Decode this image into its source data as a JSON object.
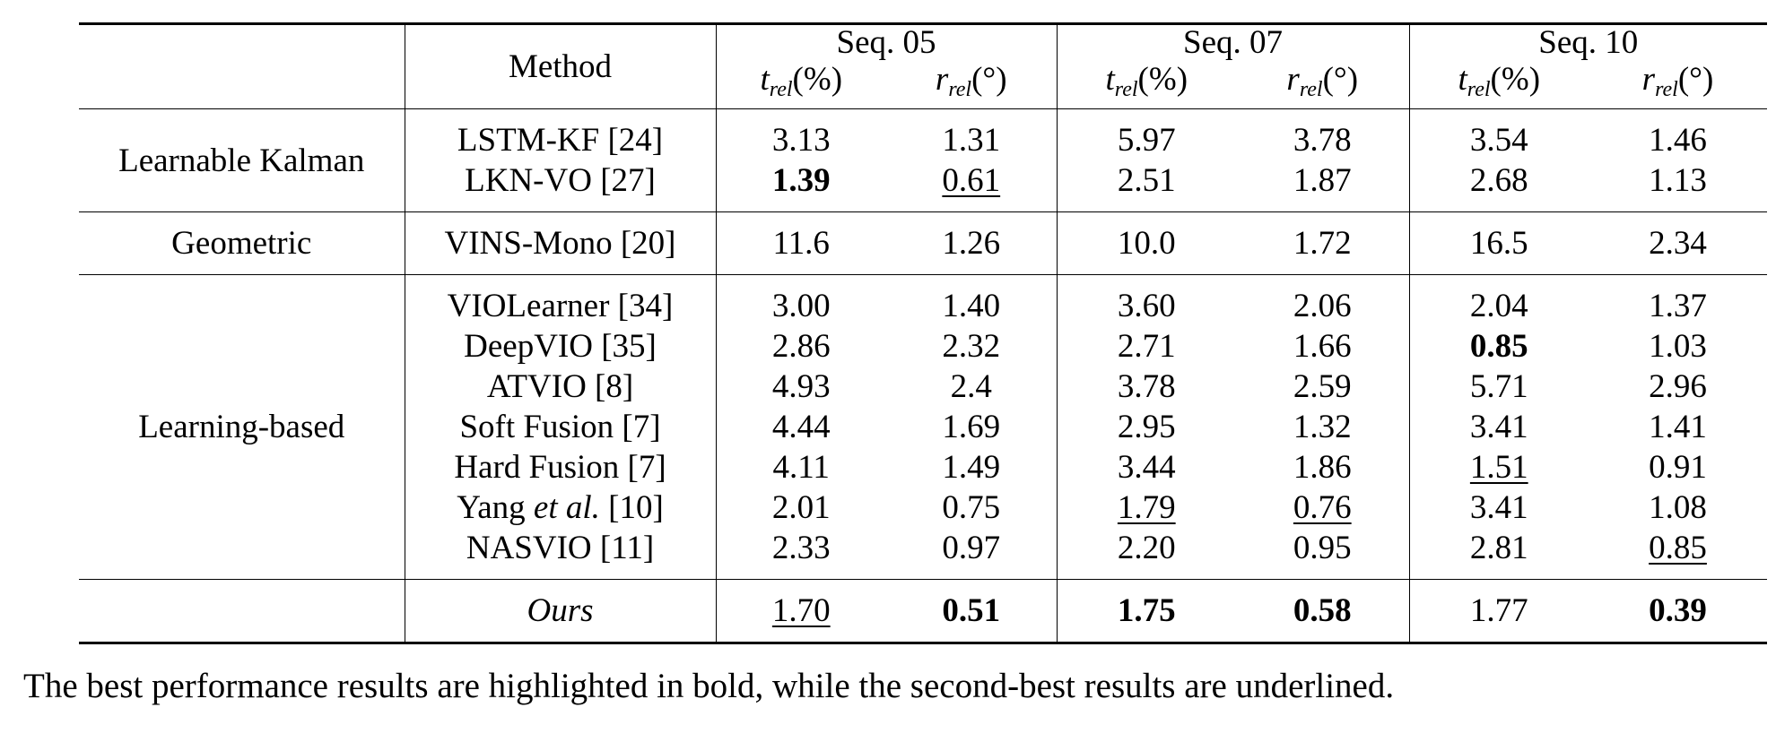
{
  "table": {
    "header": {
      "method": "Method",
      "groups": [
        {
          "label": "Seq. 05",
          "cols": [
            {
              "sym": "t",
              "sub": "rel",
              "unit": "(%)"
            },
            {
              "sym": "r",
              "sub": "rel",
              "unit": "(°)"
            }
          ]
        },
        {
          "label": "Seq. 07",
          "cols": [
            {
              "sym": "t",
              "sub": "rel",
              "unit": "(%)"
            },
            {
              "sym": "r",
              "sub": "rel",
              "unit": "(°)"
            }
          ]
        },
        {
          "label": "Seq. 10",
          "cols": [
            {
              "sym": "t",
              "sub": "rel",
              "unit": "(%)"
            },
            {
              "sym": "r",
              "sub": "rel",
              "unit": "(°)"
            }
          ]
        }
      ]
    },
    "sections": [
      {
        "category": "Learnable Kalman",
        "rows": [
          {
            "method": "LSTM-KF [24]",
            "values": [
              "3.13",
              "1.31",
              "5.97",
              "3.78",
              "3.54",
              "1.46"
            ],
            "styles": [
              "",
              "",
              "",
              "",
              "",
              ""
            ]
          },
          {
            "method": "LKN-VO [27]",
            "values": [
              "1.39",
              "0.61",
              "2.51",
              "1.87",
              "2.68",
              "1.13"
            ],
            "styles": [
              "b",
              "u",
              "",
              "",
              "",
              ""
            ]
          }
        ]
      },
      {
        "category": "Geometric",
        "rows": [
          {
            "method": "VINS-Mono [20]",
            "values": [
              "11.6",
              "1.26",
              "10.0",
              "1.72",
              "16.5",
              "2.34"
            ],
            "styles": [
              "",
              "",
              "",
              "",
              "",
              ""
            ]
          }
        ]
      },
      {
        "category": "Learning-based",
        "rows": [
          {
            "method": "VIOLearner [34]",
            "values": [
              "3.00",
              "1.40",
              "3.60",
              "2.06",
              "2.04",
              "1.37"
            ],
            "styles": [
              "",
              "",
              "",
              "",
              "",
              ""
            ]
          },
          {
            "method": "DeepVIO [35]",
            "values": [
              "2.86",
              "2.32",
              "2.71",
              "1.66",
              "0.85",
              "1.03"
            ],
            "styles": [
              "",
              "",
              "",
              "",
              "b",
              ""
            ]
          },
          {
            "method": "ATVIO [8]",
            "values": [
              "4.93",
              "2.4",
              "3.78",
              "2.59",
              "5.71",
              "2.96"
            ],
            "styles": [
              "",
              "",
              "",
              "",
              "",
              ""
            ]
          },
          {
            "method": "Soft Fusion [7]",
            "values": [
              "4.44",
              "1.69",
              "2.95",
              "1.32",
              "3.41",
              "1.41"
            ],
            "styles": [
              "",
              "",
              "",
              "",
              "",
              ""
            ]
          },
          {
            "method": "Hard Fusion [7]",
            "values": [
              "4.11",
              "1.49",
              "3.44",
              "1.86",
              "1.51",
              "0.91"
            ],
            "styles": [
              "",
              "",
              "",
              "",
              "u",
              ""
            ]
          },
          {
            "method_parts": [
              "Yang ",
              "et al.",
              " [10]"
            ],
            "values": [
              "2.01",
              "0.75",
              "1.79",
              "0.76",
              "3.41",
              "1.08"
            ],
            "styles": [
              "",
              "",
              "u",
              "u",
              "",
              ""
            ]
          },
          {
            "method": "NASVIO [11]",
            "values": [
              "2.33",
              "0.97",
              "2.20",
              "0.95",
              "2.81",
              "0.85"
            ],
            "styles": [
              "",
              "",
              "",
              "",
              "",
              "u"
            ]
          }
        ]
      },
      {
        "category": "",
        "rows": [
          {
            "method": "Ours",
            "italic": true,
            "values": [
              "1.70",
              "0.51",
              "1.75",
              "0.58",
              "1.77",
              "0.39"
            ],
            "styles": [
              "u",
              "b",
              "b",
              "b",
              "",
              "b"
            ]
          }
        ]
      }
    ]
  },
  "caption": "The best performance results are highlighted in bold, while the second-best results are underlined."
}
